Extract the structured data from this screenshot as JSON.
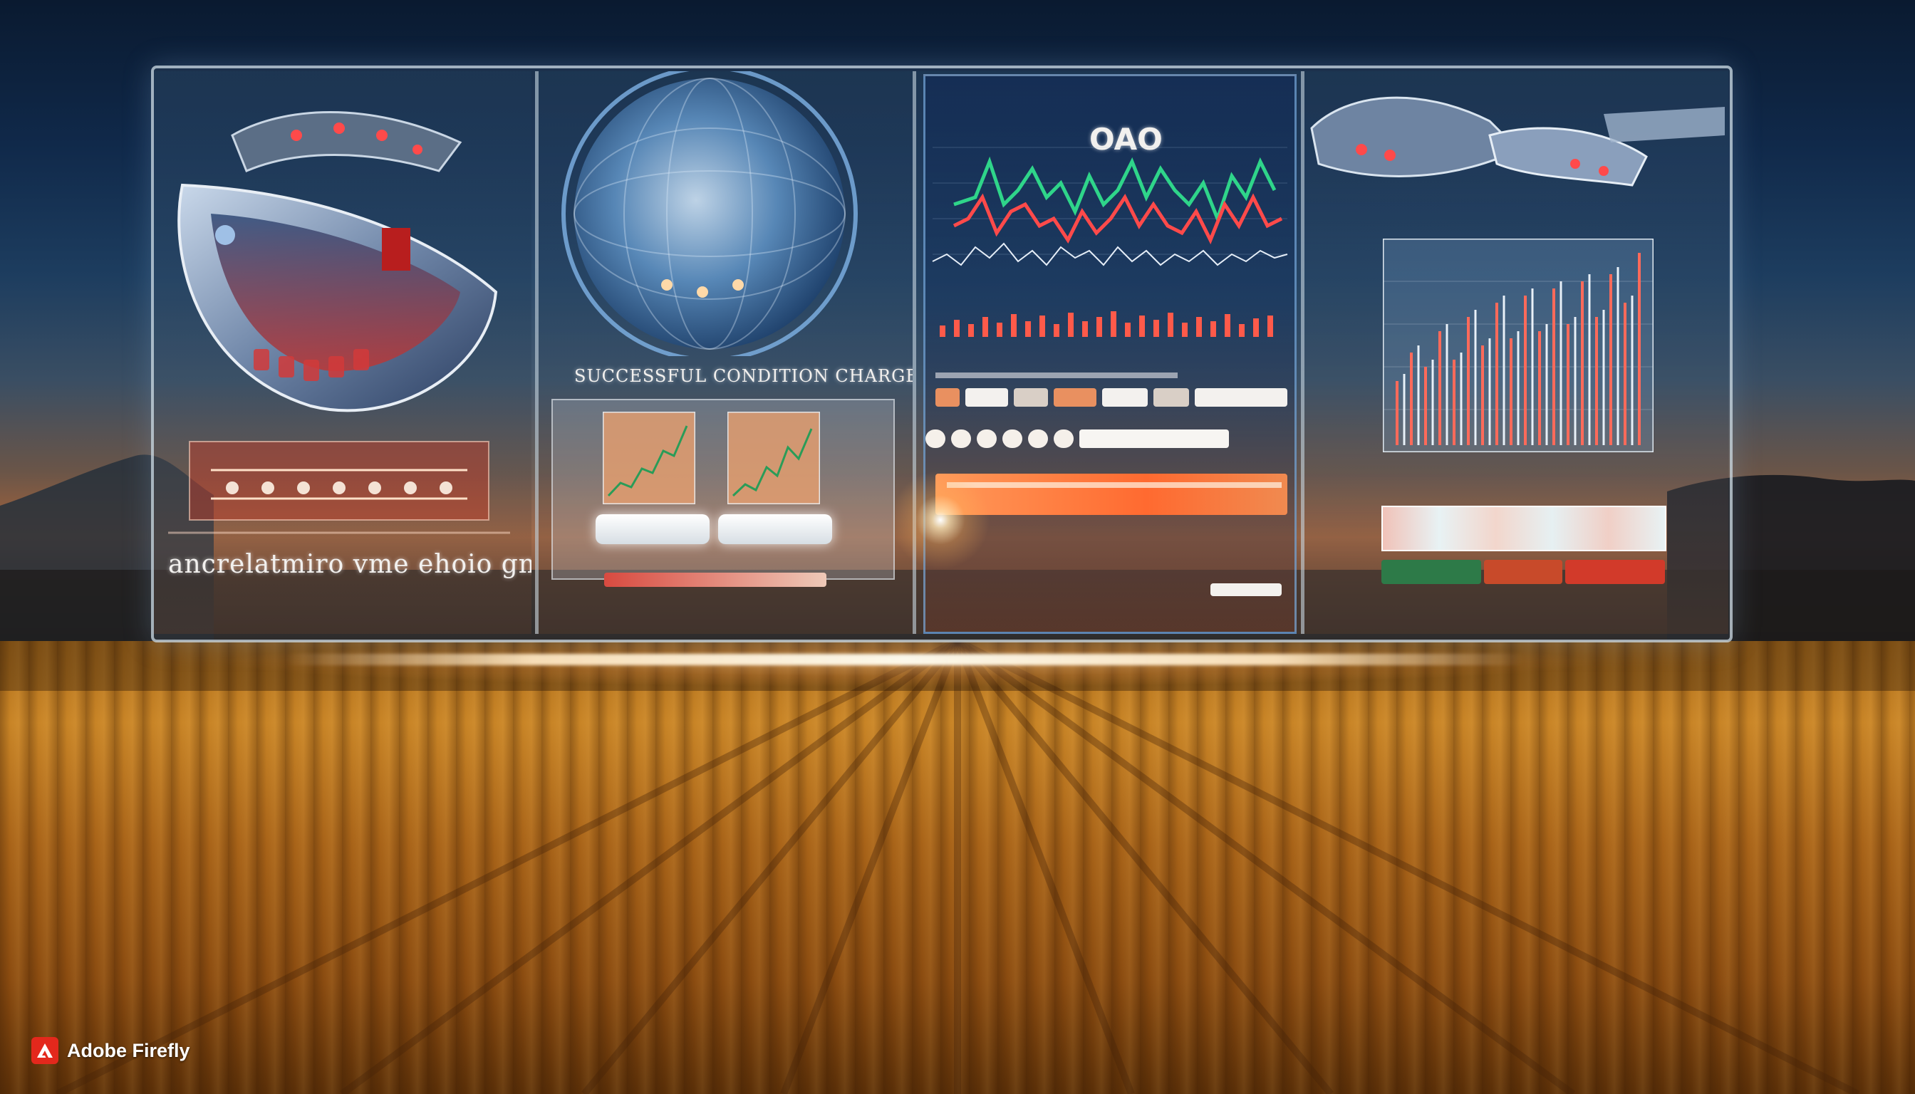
{
  "scene": {
    "panel1_caption": "ancrelatmiro  vme ehoio gn",
    "panel2_caption": "SUCCESSFUL CONDITION CHARGE",
    "panel3_caption": "OAO"
  },
  "watermark": {
    "brand": "Adobe Firefly",
    "icon": "adobe-logo-icon"
  },
  "colors": {
    "chart_green": "#2fd58a",
    "chart_red": "#ff4a4a",
    "panel_border": "#cddce6",
    "accent_orange": "#ff7a35",
    "wheat": "#c88426"
  }
}
